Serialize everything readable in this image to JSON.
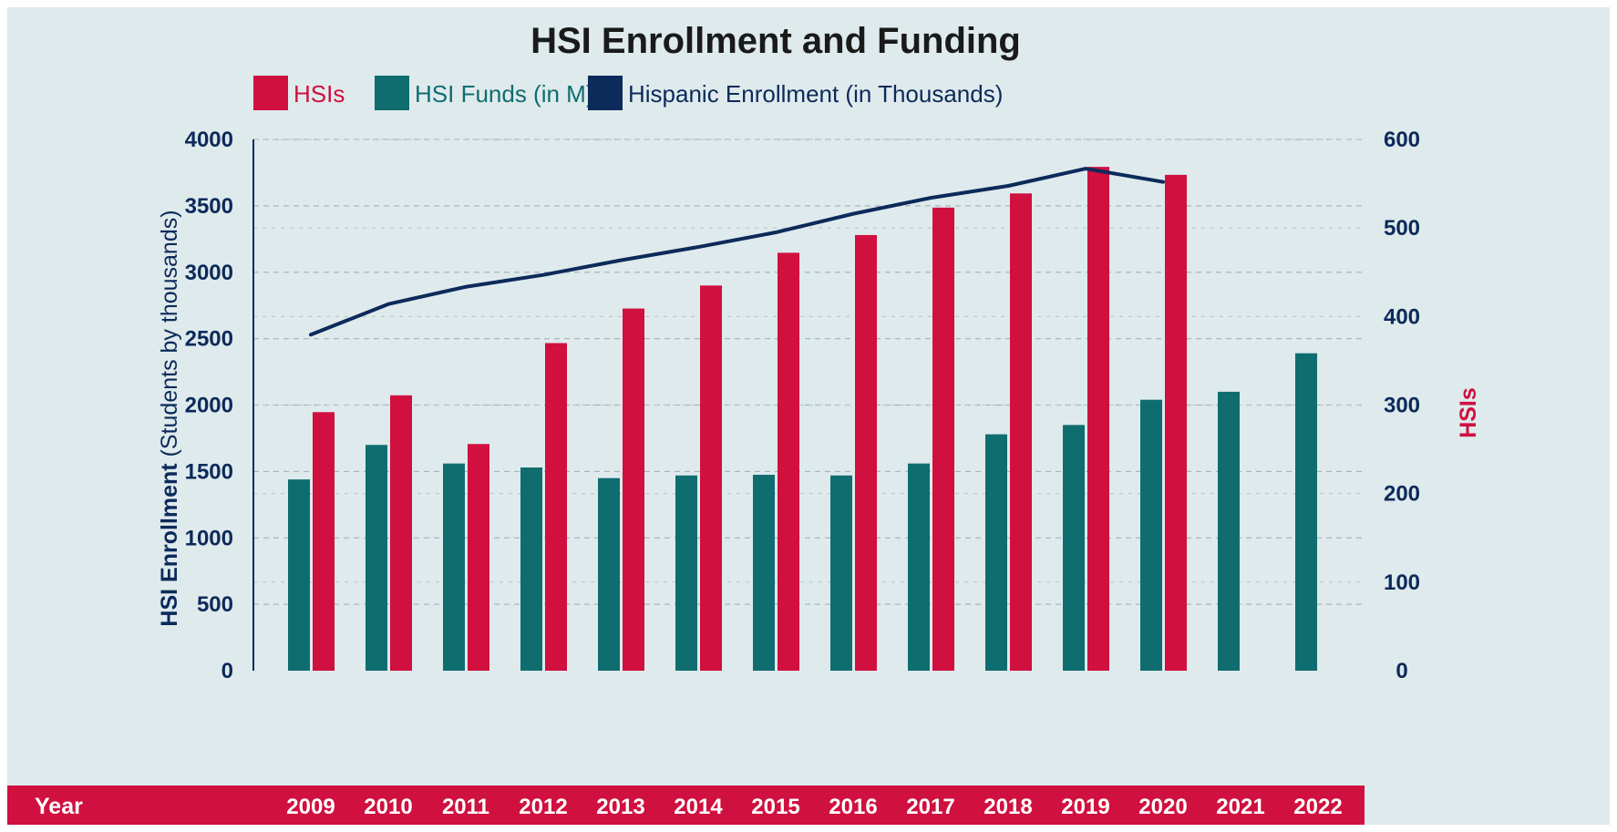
{
  "chart_data": {
    "type": "bar",
    "title": "HSI Enrollment and Funding",
    "categories": [
      "2009",
      "2010",
      "2011",
      "2012",
      "2013",
      "2014",
      "2015",
      "2016",
      "2017",
      "2018",
      "2019",
      "2020",
      "2021",
      "2022"
    ],
    "series": [
      {
        "name": "HSI Funds (in M)",
        "type": "bar",
        "axis": "left",
        "color": "#0f6d70",
        "values": [
          1440,
          1700,
          1560,
          1530,
          1450,
          1470,
          1475,
          1470,
          1560,
          1780,
          1850,
          2040,
          2100,
          2390
        ]
      },
      {
        "name": "HSIs",
        "type": "bar",
        "axis": "right",
        "color": "#d0103f",
        "values": [
          292,
          311,
          256,
          370,
          409,
          435,
          472,
          492,
          523,
          539,
          569,
          560,
          null,
          null
        ]
      },
      {
        "name": "Hispanic Enrollment (in Thousands)",
        "type": "line",
        "axis": "left",
        "color": "#0c2a5a",
        "values": [
          2530,
          2760,
          2890,
          2980,
          3090,
          3190,
          3300,
          3440,
          3560,
          3650,
          3780,
          3680,
          null,
          null
        ]
      }
    ],
    "y_left": {
      "label_bold": "HSI Enrollment",
      "label_rest": " (Students by thousands)",
      "ylim": [
        0,
        4000
      ],
      "ticks": [
        "0",
        "500",
        "1000",
        "1500",
        "2000",
        "2500",
        "3000",
        "3500",
        "4000"
      ],
      "color": "#0c2a5a"
    },
    "y_right": {
      "label": "HSIs",
      "ylim": [
        0,
        600
      ],
      "ticks": [
        "0",
        "100",
        "200",
        "300",
        "400",
        "500",
        "600"
      ],
      "color": "#0c2a5a"
    },
    "x_axis_label": "Year",
    "x_band_color": "#d0103f",
    "grid": true,
    "legend": "top-center"
  }
}
